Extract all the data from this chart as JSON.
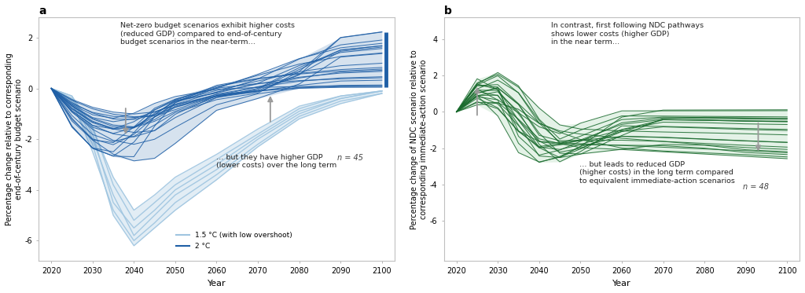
{
  "panel_a": {
    "title": "a",
    "ylabel": "Percentage change relative to corresponding\nend-of-century budget scenario",
    "xlabel": "Year",
    "ylim": [
      -6.8,
      2.8
    ],
    "yticks": [
      -6,
      -4,
      -2,
      0,
      2
    ],
    "annotation_upper": "Net-zero budget scenarios exhibit higher costs\n(reduced GDP) compared to end-of-century\nbudget scenarios in the near-term…",
    "annotation_lower": "… but they have higher GDP\n(lower costs) over the long term",
    "n_label": "n = 45",
    "light_blue": "#9fc5e0",
    "dark_blue": "#1f5fa6",
    "legend_light": "1.5 °C (with low overshoot)",
    "legend_dark": "2 °C"
  },
  "panel_b": {
    "title": "b",
    "ylabel": "Percentage change of NDC scenario relative to\ncorresponding immediate-action scenario",
    "xlabel": "Year",
    "ylim": [
      -8.2,
      5.2
    ],
    "yticks": [
      -6,
      -4,
      -2,
      0,
      2,
      4
    ],
    "annotation_upper": "In contrast, first following NDC pathways\nshows lower costs (higher GDP)\nin the near term…",
    "annotation_lower": "… but leads to reduced GDP\n(higher costs) in the long term compared\nto equivalent immediate-action scenarios",
    "n_label": "n = 48",
    "green_dark": "#1a6b2e",
    "green_light": "#a8d5b0"
  },
  "x_ticks": [
    2020,
    2030,
    2040,
    2050,
    2060,
    2070,
    2080,
    2090,
    2100
  ],
  "bg_color": "#ffffff"
}
